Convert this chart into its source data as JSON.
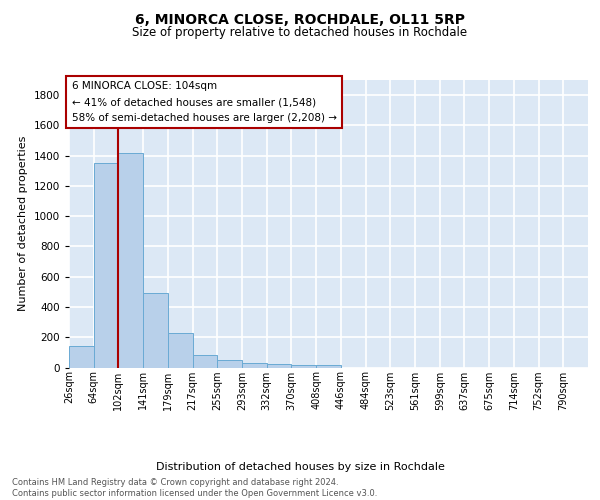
{
  "title": "6, MINORCA CLOSE, ROCHDALE, OL11 5RP",
  "subtitle": "Size of property relative to detached houses in Rochdale",
  "xlabel": "Distribution of detached houses by size in Rochdale",
  "ylabel": "Number of detached properties",
  "bar_values": [
    140,
    1350,
    1415,
    495,
    228,
    85,
    50,
    30,
    20,
    15,
    15,
    0,
    0,
    0,
    0,
    0,
    0,
    0,
    0,
    0,
    0
  ],
  "bar_labels": [
    "26sqm",
    "64sqm",
    "102sqm",
    "141sqm",
    "179sqm",
    "217sqm",
    "255sqm",
    "293sqm",
    "332sqm",
    "370sqm",
    "408sqm",
    "446sqm",
    "484sqm",
    "523sqm",
    "561sqm",
    "599sqm",
    "637sqm",
    "675sqm",
    "714sqm",
    "752sqm",
    "790sqm"
  ],
  "bar_color": "#b8d0ea",
  "bar_edge_color": "#6aaad4",
  "bg_color": "#dce8f5",
  "grid_color": "#ffffff",
  "annotation_line_color": "#aa0000",
  "annotation_box_text": "6 MINORCA CLOSE: 104sqm\n← 41% of detached houses are smaller (1,548)\n58% of semi-detached houses are larger (2,208) →",
  "footer": "Contains HM Land Registry data © Crown copyright and database right 2024.\nContains public sector information licensed under the Open Government Licence v3.0.",
  "ylim": [
    0,
    1900
  ],
  "yticks": [
    0,
    200,
    400,
    600,
    800,
    1000,
    1200,
    1400,
    1600,
    1800
  ],
  "n_total_bins": 21,
  "property_bin_index": 2
}
